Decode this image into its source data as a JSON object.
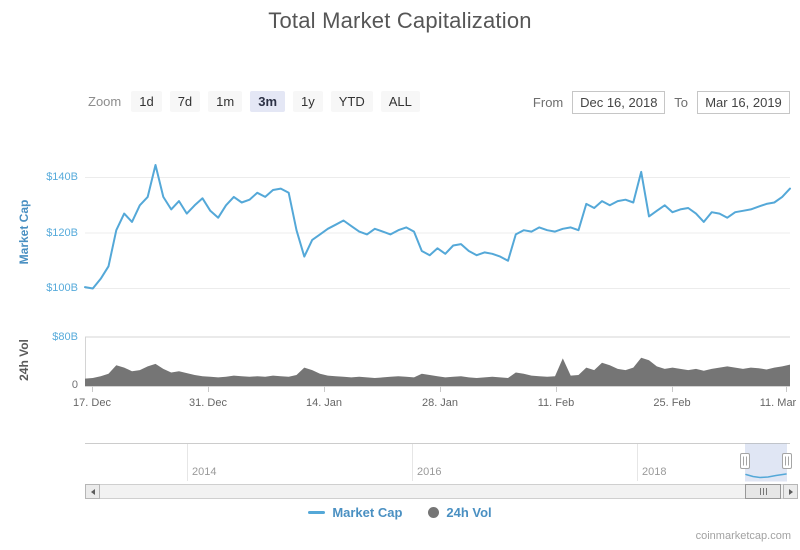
{
  "title": "Total Market Capitalization",
  "controls": {
    "zoom_label": "Zoom",
    "zoom_buttons": [
      {
        "label": "1d",
        "selected": false
      },
      {
        "label": "7d",
        "selected": false
      },
      {
        "label": "1m",
        "selected": false
      },
      {
        "label": "3m",
        "selected": true
      },
      {
        "label": "1y",
        "selected": false
      },
      {
        "label": "YTD",
        "selected": false
      },
      {
        "label": "ALL",
        "selected": false
      }
    ],
    "from_label": "From",
    "from_value": "Dec 16, 2018",
    "to_label": "To",
    "to_value": "Mar 16, 2019"
  },
  "market_cap_axis": {
    "title": "Market Cap",
    "tick_labels": [
      "$140B",
      "$120B",
      "$100B"
    ]
  },
  "volume_axis": {
    "title": "24h Vol",
    "tick_labels": [
      "$80B",
      "0"
    ]
  },
  "x_axis": {
    "tick_labels": [
      "17. Dec",
      "31. Dec",
      "14. Jan",
      "28. Jan",
      "11. Feb",
      "25. Feb",
      "11. Mar"
    ]
  },
  "navigator": {
    "year_labels": [
      "2014",
      "2016",
      "2018"
    ],
    "selected_window": [
      "Dec 16, 2018",
      "Mar 16, 2019"
    ],
    "mini_series_points": [
      [
        746,
        474.5
      ],
      [
        753,
        476.5
      ],
      [
        760,
        477.5
      ],
      [
        768,
        477
      ],
      [
        776,
        475.5
      ],
      [
        786,
        474
      ]
    ]
  },
  "legend": [
    {
      "label": "Market Cap",
      "marker": "line",
      "color": "#54a8d8"
    },
    {
      "label": "24h Vol",
      "marker": "circle",
      "color": "#757575"
    }
  ],
  "credit": "coinmarketcap.com",
  "colors": {
    "market_cap_line": "#54a8d8",
    "volume_fill": "#757575",
    "axis_label_blue": "#57abdb",
    "selection_fill": "rgba(61,99,184,0.16)"
  },
  "chart_data": [
    {
      "name": "Market Cap",
      "type": "line",
      "color": "#54a8d8",
      "x_start": "Dec 16, 2018",
      "x_end": "Mar 16, 2019",
      "x_interval": "1 day",
      "ylabel": "Market Cap",
      "ylim": [
        95,
        150
      ],
      "y_gridlines_billions": [
        100,
        120,
        140
      ],
      "unit": "USD billions",
      "values": [
        100.5,
        100,
        103.5,
        108,
        121,
        127,
        124,
        130,
        133,
        144.5,
        133,
        128.5,
        131.5,
        127,
        130,
        132.5,
        128,
        125.5,
        130,
        133,
        131,
        132,
        134.5,
        133,
        135.5,
        136,
        134.5,
        121,
        111.5,
        117.5,
        119.5,
        121.5,
        123,
        124.5,
        122.5,
        120.5,
        119.5,
        121.5,
        120.5,
        119.5,
        121,
        122,
        120.5,
        113.5,
        112,
        114.5,
        112.5,
        115.5,
        116,
        113.5,
        112,
        113,
        112.5,
        111.5,
        110,
        119.5,
        121,
        120.5,
        122,
        121,
        120.5,
        121.5,
        122,
        121,
        130.5,
        129,
        131.5,
        130,
        131.5,
        132,
        131,
        142,
        126,
        128,
        130,
        127.5,
        128.5,
        129,
        127,
        124,
        127.5,
        127,
        125.5,
        127.5,
        128,
        128.5,
        129.5,
        130.5,
        131,
        133,
        136
      ]
    },
    {
      "name": "24h Vol",
      "type": "area",
      "color": "#757575",
      "x_start": "Dec 16, 2018",
      "x_end": "Mar 16, 2019",
      "x_interval": "1 day",
      "ylabel": "24h Vol",
      "ylim": [
        0,
        80
      ],
      "unit": "USD billions",
      "values": [
        12,
        13,
        16,
        20,
        34,
        30,
        24,
        26,
        32,
        36,
        28,
        22,
        24,
        21,
        18,
        16,
        15,
        14,
        15,
        17,
        16,
        15,
        16,
        15,
        17,
        16,
        15,
        18,
        30,
        26,
        20,
        17,
        16,
        15,
        14,
        15,
        14,
        13,
        14,
        15,
        16,
        15,
        14,
        20,
        18,
        16,
        14,
        15,
        16,
        14,
        13,
        14,
        15,
        14,
        13,
        22,
        20,
        17,
        16,
        15,
        16,
        45,
        17,
        18,
        30,
        26,
        38,
        34,
        28,
        26,
        30,
        46,
        42,
        32,
        28,
        30,
        28,
        26,
        28,
        25,
        28,
        30,
        32,
        30,
        28,
        30,
        29,
        27,
        30,
        32,
        35
      ]
    },
    {
      "name": "navigator",
      "type": "line",
      "color": "#54a8d8",
      "x_year_ticks": [
        2014,
        2016,
        2018
      ],
      "selected_window": [
        "Dec 16, 2018",
        "Mar 16, 2019"
      ]
    }
  ]
}
